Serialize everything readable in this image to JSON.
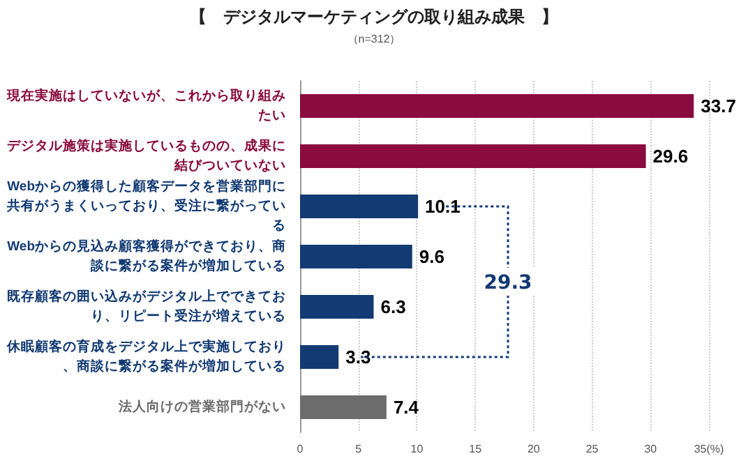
{
  "chart_data": {
    "type": "bar",
    "orientation": "horizontal",
    "title": "【　デジタルマーケティングの取り組み成果　】",
    "subtitle": "（n=312）",
    "categories": [
      "現在実施はしていないが、これから取り組みたい",
      "デジタル施策は実施しているものの、成果に結びついていない",
      "Webからの獲得した顧客データを営業部門に共有がうまくいっており、受注に繋がっている",
      "Webからの見込み顧客獲得ができており、商談に繋がる案件が増加している",
      "既存顧客の囲い込みがデジタル上でできており、リピート受注が増えている",
      "休眠顧客の育成をデジタル上で実施しており、商談に繋がる案件が増加している",
      "法人向けの営業部門がない"
    ],
    "values": [
      33.7,
      29.6,
      10.1,
      9.6,
      6.3,
      3.3,
      7.4
    ],
    "colors": [
      "#8a0b3d",
      "#8a0b3d",
      "#123a73",
      "#123a73",
      "#123a73",
      "#123a73",
      "#6d6d6d"
    ],
    "data_labels": true,
    "xlim": [
      0,
      35
    ],
    "xticks": [
      0,
      5,
      10,
      15,
      20,
      25,
      30,
      {
        "value": 35,
        "label": "35(%)"
      }
    ],
    "grid": "x",
    "annotations": [
      "29.3"
    ]
  }
}
